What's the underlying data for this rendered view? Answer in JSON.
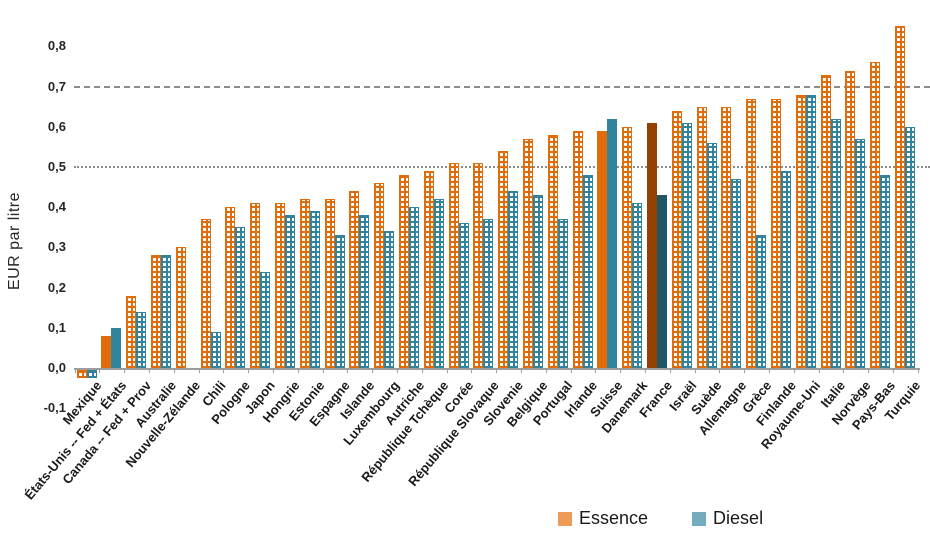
{
  "chart_data": {
    "type": "bar",
    "title": "",
    "ylabel": "EUR par litre",
    "ylim": [
      -0.1,
      0.8
    ],
    "grid": "partial",
    "legend_position": "bottom",
    "categories": [
      "Mexique",
      "États-Unis -- Fed + États",
      "Canada -- Fed + Prov",
      "Australie",
      "Nouvelle-Zélande",
      "Chili",
      "Pologne",
      "Japon",
      "Hongrie",
      "Estonie",
      "Espagne",
      "Islande",
      "Luxembourg",
      "Autriche",
      "République Tchèque",
      "Corée",
      "République Slovaque",
      "Slovenie",
      "Belgique",
      "Portugal",
      "Irlande",
      "Suisse",
      "Danemark",
      "France",
      "Israël",
      "Suède",
      "Allemagne",
      "Grèce",
      "Finlande",
      "Royaume-Uni",
      "Italie",
      "Norvège",
      "Pays-Bas",
      "Turquie"
    ],
    "series": [
      {
        "name": "Essence",
        "values": [
          -0.02,
          0.08,
          0.18,
          0.28,
          0.3,
          0.37,
          0.4,
          0.41,
          0.41,
          0.42,
          0.42,
          0.44,
          0.46,
          0.48,
          0.49,
          0.51,
          0.51,
          0.54,
          0.57,
          0.58,
          0.59,
          0.59,
          0.6,
          0.61,
          0.64,
          0.65,
          0.65,
          0.67,
          0.67,
          0.68,
          0.73,
          0.74,
          0.76,
          0.85
        ]
      },
      {
        "name": "Diesel",
        "values": [
          -0.02,
          0.1,
          0.14,
          0.28,
          0.0,
          0.09,
          0.35,
          0.24,
          0.38,
          0.39,
          0.33,
          0.38,
          0.34,
          0.4,
          0.42,
          0.36,
          0.37,
          0.44,
          0.43,
          0.37,
          0.48,
          0.62,
          0.41,
          0.43,
          0.61,
          0.56,
          0.47,
          0.33,
          0.49,
          0.68,
          0.62,
          0.57,
          0.48,
          0.6
        ]
      }
    ],
    "solid_bar_countries": [
      "États-Unis -- Fed + États",
      "Suisse"
    ],
    "dark_bar_countries": [
      "France"
    ],
    "yticks": [
      {
        "value": 0.8,
        "label": "0,8"
      },
      {
        "value": 0.7,
        "label": "0,7"
      },
      {
        "value": 0.6,
        "label": "0,6"
      },
      {
        "value": 0.5,
        "label": "0,5"
      },
      {
        "value": 0.4,
        "label": "0,4"
      },
      {
        "value": 0.3,
        "label": "0,3"
      },
      {
        "value": 0.2,
        "label": "0,2"
      },
      {
        "value": 0.1,
        "label": "0,1"
      },
      {
        "value": 0.0,
        "label": "0,0"
      },
      {
        "value": -0.1,
        "label": "-0,1"
      }
    ],
    "gridlines": [
      {
        "value": 0.7,
        "style": "dashed"
      },
      {
        "value": 0.5,
        "style": "dotted"
      }
    ],
    "colors": {
      "essence": "#E36C0A",
      "diesel": "#31849B",
      "essence_dark": "#944000",
      "diesel_dark": "#1F5564",
      "legend_essence": "#ED9B57",
      "legend_diesel": "#74ACBE",
      "gridline": "#8C8C8C",
      "axis": "#9D9D9D"
    }
  }
}
